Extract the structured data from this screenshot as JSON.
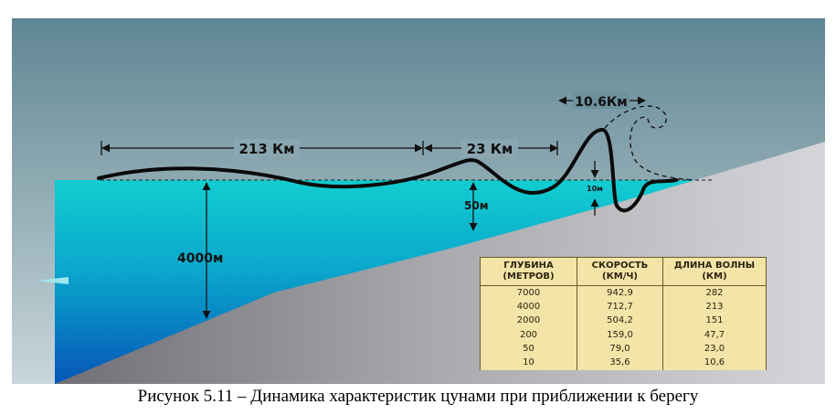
{
  "labels": {
    "distance_long": "213 Км",
    "distance_mid": "23 Км",
    "distance_short": "10.6Км",
    "depth_deep": "4000м",
    "depth_shallow": "50м",
    "wave_height": "10м"
  },
  "table": {
    "headers": [
      [
        "ГЛУБИНА",
        "(МЕТРОВ)"
      ],
      [
        "СКОРОСТЬ",
        "(КМ/Ч)"
      ],
      [
        "ДЛИНА ВОЛНЫ",
        "(КМ)"
      ]
    ],
    "rows": [
      [
        "7000",
        "942,9",
        "282"
      ],
      [
        "4000",
        "712,7",
        "213"
      ],
      [
        "2000",
        "504,2",
        "151"
      ],
      [
        "200",
        "159,0",
        "47,7"
      ],
      [
        "50",
        "79,0",
        "23,0"
      ],
      [
        "10",
        "35,6",
        "10,6"
      ]
    ]
  },
  "caption": "Рисунок 5.11 – Динамика характеристик цунами при приближении к берегу",
  "colors": {
    "sky": "#7d9eaa",
    "water_top": "#0fc8cc",
    "water_bottom": "#0870c0",
    "seabed_light": "#c4c4c8",
    "seabed_dark": "#7a7a80",
    "table_fill": "#f3e4a8"
  }
}
